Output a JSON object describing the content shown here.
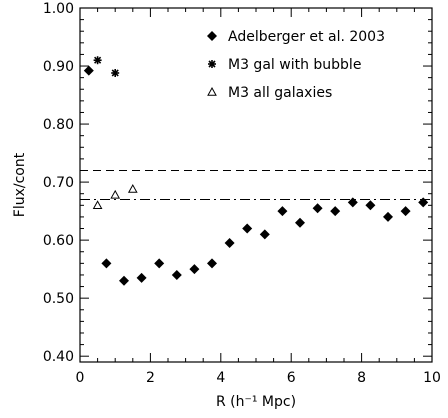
{
  "chart_data": {
    "type": "scatter",
    "title": "",
    "xlabel": "R (h⁻¹ Mpc)",
    "ylabel": "Flux/cont",
    "xlim": [
      0,
      10
    ],
    "ylim": [
      0.39,
      1.0
    ],
    "grid": false,
    "legend_position": "top-right",
    "x_ticks": [
      0,
      2,
      4,
      6,
      8,
      10
    ],
    "x_tick_labels": [
      "0",
      "2",
      "4",
      "6",
      "8",
      "10"
    ],
    "x_minor_step": 0.5,
    "y_ticks": [
      0.4,
      0.5,
      0.6,
      0.7,
      0.8,
      0.9,
      1.0
    ],
    "y_tick_labels": [
      "0.40",
      "0.50",
      "0.60",
      "0.70",
      "0.80",
      "0.90",
      "1.00"
    ],
    "y_minor_step": 0.02,
    "series": [
      {
        "name": "Adelberger et al. 2003",
        "marker": "diamond",
        "color": "#000000",
        "points": [
          [
            0.25,
            0.892
          ],
          [
            0.75,
            0.56
          ],
          [
            1.25,
            0.53
          ],
          [
            1.75,
            0.535
          ],
          [
            2.25,
            0.56
          ],
          [
            2.75,
            0.54
          ],
          [
            3.25,
            0.55
          ],
          [
            3.75,
            0.56
          ],
          [
            4.25,
            0.595
          ],
          [
            4.75,
            0.62
          ],
          [
            5.25,
            0.61
          ],
          [
            5.75,
            0.65
          ],
          [
            6.25,
            0.63
          ],
          [
            6.75,
            0.655
          ],
          [
            7.25,
            0.65
          ],
          [
            7.75,
            0.665
          ],
          [
            8.25,
            0.66
          ],
          [
            8.75,
            0.64
          ],
          [
            9.25,
            0.65
          ],
          [
            9.75,
            0.665
          ]
        ]
      },
      {
        "name": "M3 gal with bubble",
        "marker": "asterisk",
        "color": "#000000",
        "points": [
          [
            0.5,
            0.91
          ],
          [
            1.0,
            0.888
          ]
        ]
      },
      {
        "name": "M3 all galaxies",
        "marker": "open-triangle",
        "color": "#000000",
        "points": [
          [
            0.5,
            0.66
          ],
          [
            1.0,
            0.678
          ],
          [
            1.5,
            0.688
          ]
        ]
      }
    ],
    "reference_lines": [
      {
        "y": 0.72,
        "style": "dashed"
      },
      {
        "y": 0.67,
        "style": "dash-dot"
      }
    ]
  }
}
